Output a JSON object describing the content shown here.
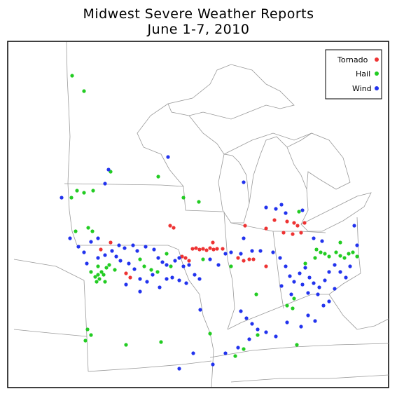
{
  "title": "Midwest Severe Weather Reports",
  "subtitle": "June 1-7, 2010",
  "legend": [
    {
      "label": "Tornado",
      "color": "#ee3333"
    },
    {
      "label": "Hail",
      "color": "#22cc22"
    },
    {
      "label": "Wind",
      "color": "#2233ee"
    }
  ],
  "colors": {
    "border": "#000000",
    "map_lines": "#999999"
  },
  "report_counts_note": ""
}
